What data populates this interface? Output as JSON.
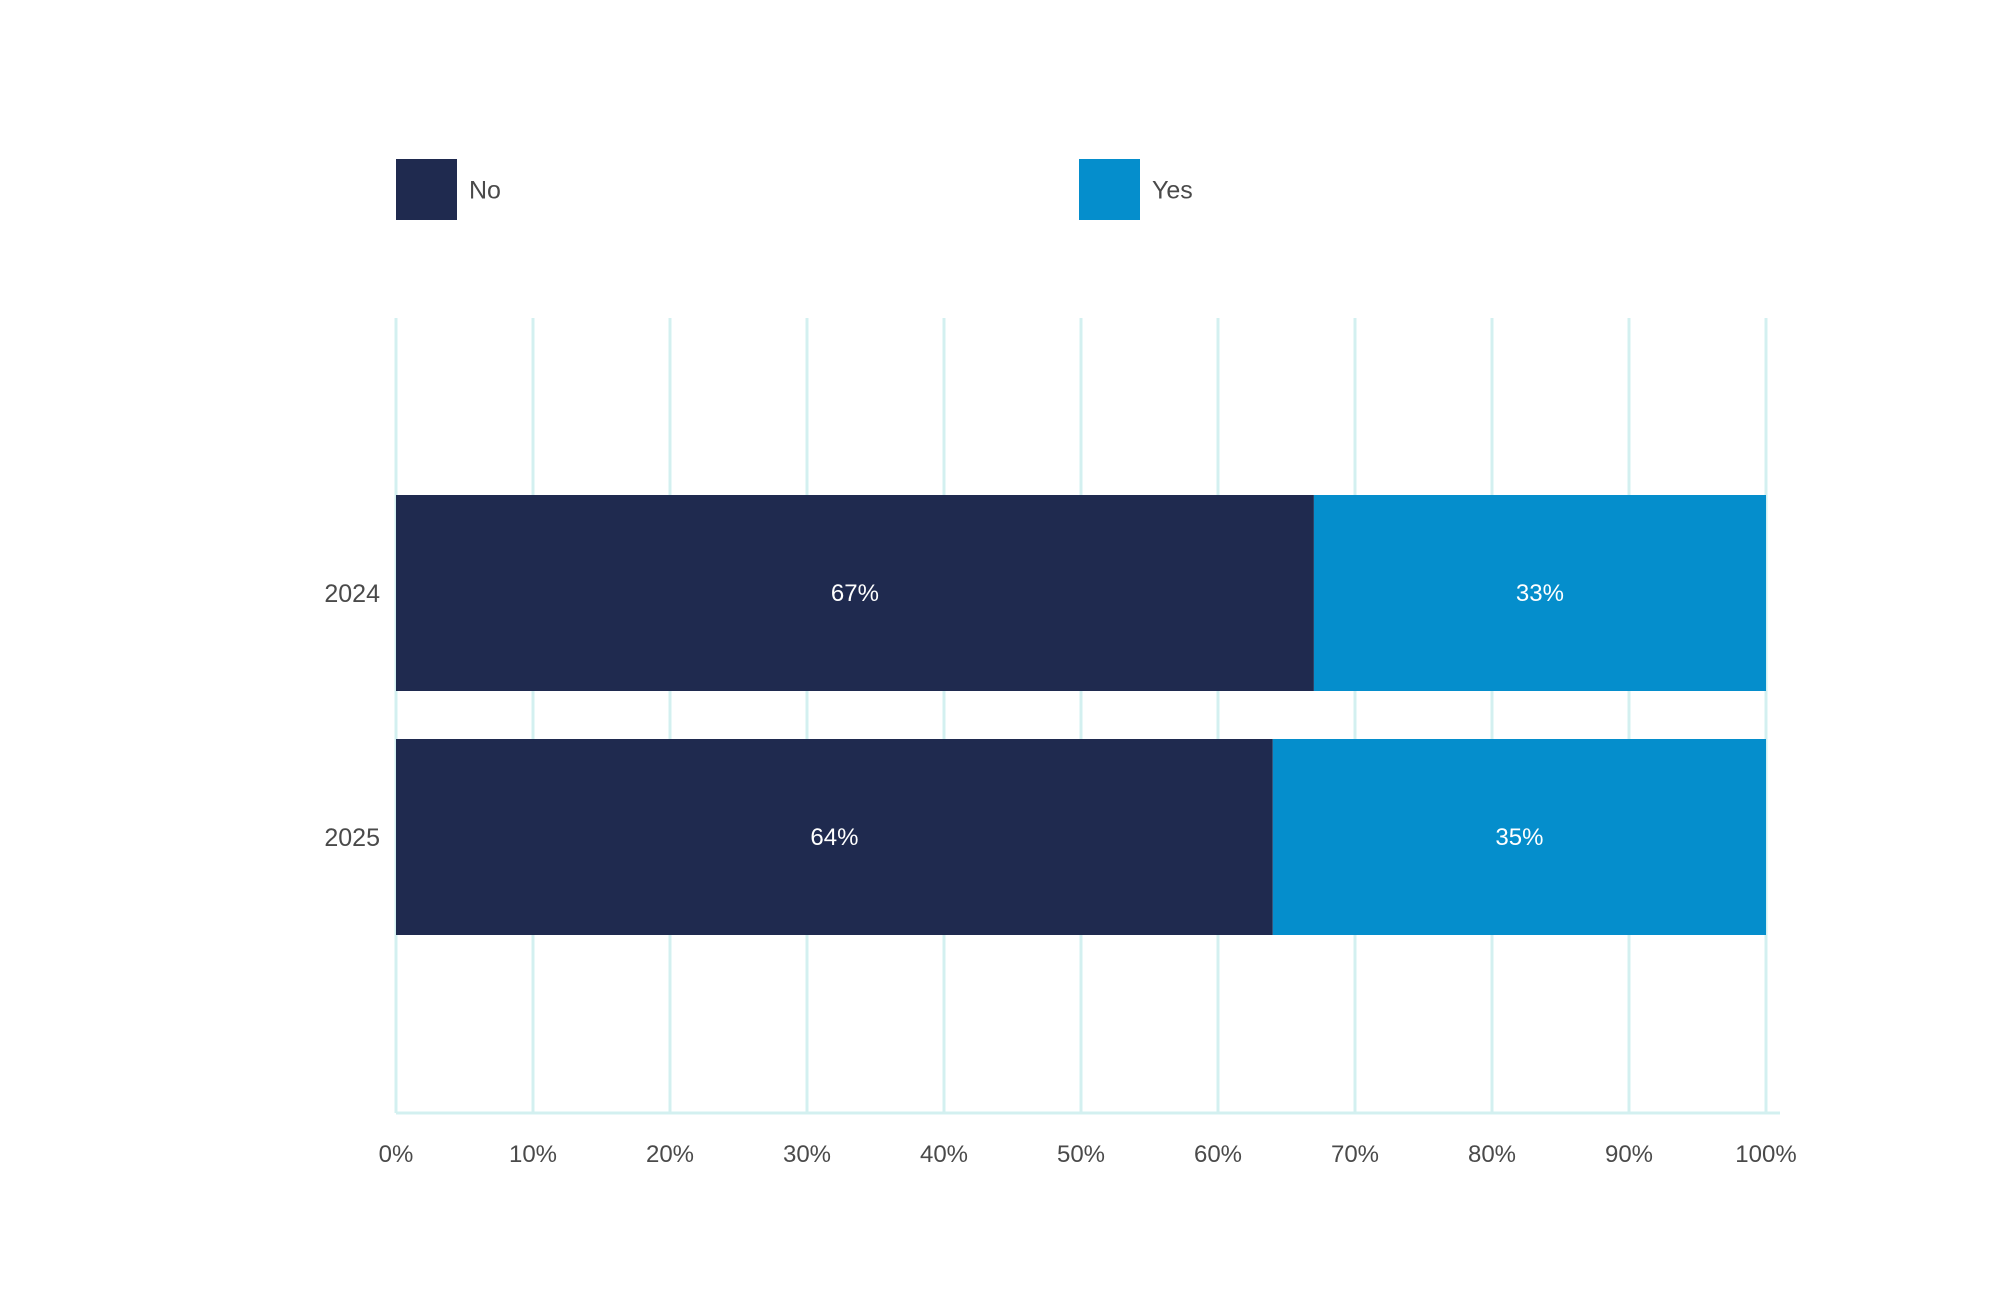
{
  "chart_data": {
    "type": "bar",
    "orientation": "horizontal",
    "stacked": true,
    "categories": [
      "2024",
      "2025"
    ],
    "series": [
      {
        "name": "No",
        "values": [
          67,
          64
        ],
        "labels": [
          "67%",
          "64%"
        ],
        "color": "#1f2a4f"
      },
      {
        "name": "Yes",
        "values": [
          33,
          35
        ],
        "labels": [
          "33%",
          "35%"
        ],
        "color": "#058ecc"
      }
    ],
    "xlim": [
      0,
      100
    ],
    "xticks": [
      0,
      10,
      20,
      30,
      40,
      50,
      60,
      70,
      80,
      90,
      100
    ],
    "xtick_labels": [
      "0%",
      "10%",
      "20%",
      "30%",
      "40%",
      "50%",
      "60%",
      "70%",
      "80%",
      "90%",
      "100%"
    ],
    "grid": true,
    "grid_color": "#d3f0f0",
    "legend_position": "top",
    "title": "",
    "xlabel": "",
    "ylabel": ""
  }
}
